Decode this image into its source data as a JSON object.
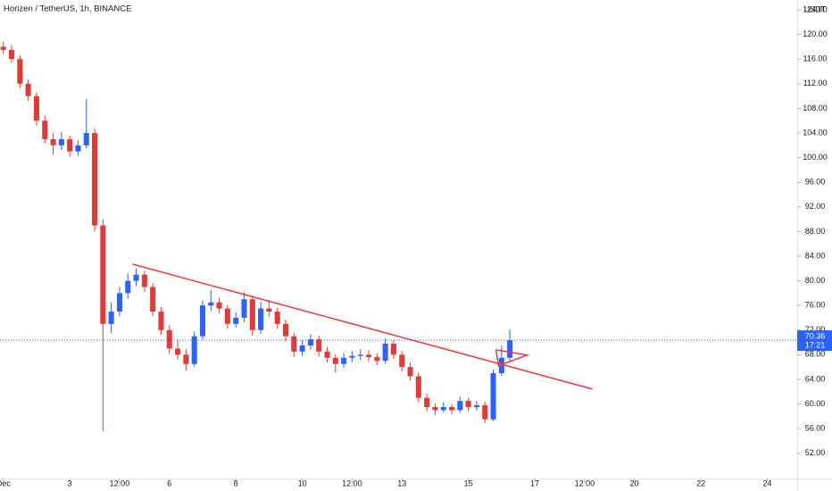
{
  "chart_data": {
    "type": "candlestick",
    "title": "Horizen / TetherUS, 1h, BINANCE",
    "currency": "USDT",
    "up_color": "#2962ff",
    "down_color": "#e53935",
    "drawing_color": "#f23645",
    "price_line_color": "#2962ff",
    "grid": false,
    "xlim": [
      -0.1,
      23.9
    ],
    "xticks": [
      {
        "value": 0,
        "label": "Dec"
      },
      {
        "value": 2,
        "label": "3"
      },
      {
        "value": 3.5,
        "label": "12:00"
      },
      {
        "value": 5,
        "label": "6"
      },
      {
        "value": 7,
        "label": "8"
      },
      {
        "value": 9,
        "label": "10"
      },
      {
        "value": 10.5,
        "label": "12:00"
      },
      {
        "value": 12,
        "label": "13"
      },
      {
        "value": 14,
        "label": "15"
      },
      {
        "value": 16,
        "label": "17"
      },
      {
        "value": 17.5,
        "label": "12:00"
      },
      {
        "value": 19,
        "label": "20"
      },
      {
        "value": 21,
        "label": "22"
      },
      {
        "value": 23,
        "label": "24"
      }
    ],
    "ylim": [
      47.9,
      125.6
    ],
    "yticks": [
      {
        "value": 52,
        "label": "52.00"
      },
      {
        "value": 56,
        "label": "56.00"
      },
      {
        "value": 60,
        "label": "60.00"
      },
      {
        "value": 64,
        "label": "64.00"
      },
      {
        "value": 68,
        "label": "68.00"
      },
      {
        "value": 72,
        "label": "72.00"
      },
      {
        "value": 76,
        "label": "76.00"
      },
      {
        "value": 80,
        "label": "80.00"
      },
      {
        "value": 84,
        "label": "84.00"
      },
      {
        "value": 88,
        "label": "88.00"
      },
      {
        "value": 92,
        "label": "92.00"
      },
      {
        "value": 96,
        "label": "96.00"
      },
      {
        "value": 100,
        "label": "100.00"
      },
      {
        "value": 104,
        "label": "104.00"
      },
      {
        "value": 108,
        "label": "108.00"
      },
      {
        "value": 112,
        "label": "112.00"
      },
      {
        "value": 116,
        "label": "116.00"
      },
      {
        "value": 120,
        "label": "120.00"
      },
      {
        "value": 124,
        "label": "124.00"
      }
    ],
    "x": [
      0,
      0.25,
      0.5,
      0.75,
      1,
      1.25,
      1.5,
      1.75,
      2,
      2.25,
      2.5,
      2.75,
      3,
      3.25,
      3.5,
      3.75,
      4,
      4.25,
      4.5,
      4.75,
      5,
      5.25,
      5.5,
      5.75,
      6,
      6.25,
      6.5,
      6.75,
      7,
      7.25,
      7.5,
      7.75,
      8,
      8.25,
      8.5,
      8.75,
      9,
      9.25,
      9.5,
      9.75,
      10,
      10.25,
      10.5,
      10.75,
      11,
      11.25,
      11.5,
      11.75,
      12,
      12.25,
      12.5,
      12.75,
      13,
      13.25,
      13.5,
      13.75,
      14,
      14.25,
      14.5,
      14.75,
      15,
      15.25
    ],
    "open": [
      118,
      117.5,
      116,
      112,
      110,
      106,
      103,
      102,
      103,
      101,
      102,
      104,
      89,
      73,
      75,
      78,
      80,
      81,
      79,
      75,
      72,
      69,
      68,
      66.5,
      71,
      76,
      76.5,
      75.5,
      73,
      74,
      77,
      72,
      75.5,
      75,
      73,
      71,
      68.5,
      69.5,
      70.5,
      68.5,
      67.5,
      66.5,
      67.5,
      67.8,
      68,
      67.6,
      67,
      69.8,
      68,
      66,
      64.5,
      61,
      59.5,
      59,
      59.5,
      59,
      60.5,
      59.5,
      59.8,
      57.5,
      65,
      67.5
    ],
    "high": [
      118.8,
      118.2,
      116.6,
      112.7,
      110.6,
      106.8,
      104,
      104.2,
      103.6,
      102.8,
      109.5,
      104.8,
      90,
      76.5,
      79,
      81.2,
      82,
      81.6,
      79.6,
      75.7,
      72.8,
      70.4,
      68.9,
      71.8,
      76.8,
      78.5,
      77.2,
      76.1,
      74.9,
      78.2,
      77.6,
      76.6,
      76.9,
      75.6,
      73.7,
      71.6,
      70.3,
      71.3,
      71.1,
      69.2,
      68.1,
      68.3,
      68.6,
      68.9,
      68.7,
      68.2,
      70.6,
      70.4,
      68.6,
      66.7,
      65.1,
      61.7,
      60.1,
      60.3,
      60,
      61.2,
      61,
      60.5,
      60.4,
      65.6,
      69.5,
      72.1
    ],
    "low": [
      116.8,
      115.4,
      111.3,
      109.2,
      105.2,
      102.3,
      100.5,
      101.2,
      100.2,
      100.3,
      101.5,
      88,
      55.6,
      71.5,
      74.2,
      77.1,
      79.1,
      78.2,
      74.3,
      71.2,
      68.1,
      67.2,
      65.4,
      66,
      70.4,
      75.1,
      74.7,
      72.2,
      72.4,
      73.3,
      71.1,
      71.4,
      74.2,
      72.2,
      70.2,
      67.6,
      67.8,
      68.8,
      67.7,
      66.8,
      65.1,
      65.9,
      66.8,
      67.1,
      66.9,
      66.3,
      66.5,
      67.3,
      65.3,
      63.8,
      60.3,
      58.8,
      58.2,
      58.6,
      58.3,
      58.6,
      58.8,
      58.9,
      56.9,
      57.2,
      64.6,
      67
    ],
    "close": [
      117.5,
      116,
      112,
      110,
      106,
      103,
      102,
      103,
      101,
      102,
      104,
      89,
      73,
      75,
      78,
      80,
      81,
      79,
      75,
      72,
      69,
      68,
      66.5,
      71,
      76,
      76.5,
      75.5,
      73,
      74,
      77,
      72,
      75.5,
      75,
      73,
      71,
      68.5,
      69.5,
      70.5,
      68.5,
      67.5,
      66.5,
      67.5,
      67.8,
      68,
      67.6,
      67,
      69.8,
      68,
      66,
      64.5,
      61,
      59.5,
      59,
      59.5,
      59,
      60.5,
      59.5,
      59.8,
      57.5,
      65,
      67.5,
      70.36
    ],
    "last_price": 70.36,
    "countdown": "17:21",
    "trend_line": [
      [
        3.885,
        82.71
      ],
      [
        17.73,
        62.43
      ]
    ],
    "triangle": [
      [
        14.83,
        68.8
      ],
      [
        15.77,
        67.94
      ],
      [
        14.91,
        66.2
      ],
      [
        14.83,
        68.8
      ]
    ]
  }
}
